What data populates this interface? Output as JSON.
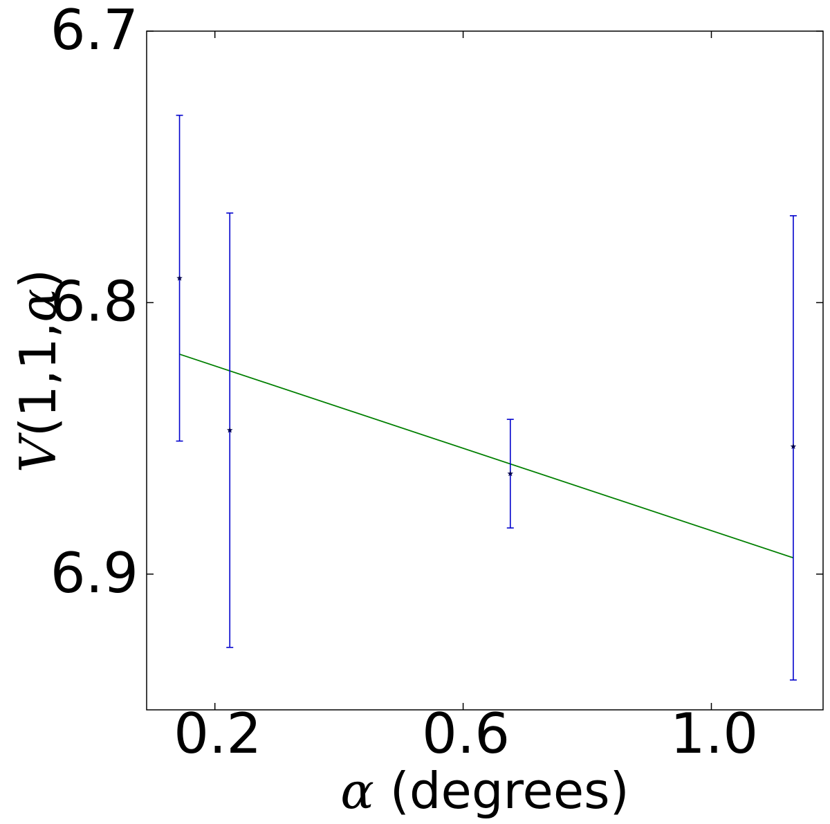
{
  "chart_data": {
    "type": "scatter",
    "title": "",
    "xlabel": "α (degrees)",
    "ylabel": "V(1,1,α)",
    "x_ticks": [
      0.2,
      0.6,
      1.0
    ],
    "x_tick_labels": [
      "0.2",
      "0.6",
      "1.0"
    ],
    "y_ticks": [
      6.7,
      6.8,
      6.9
    ],
    "y_tick_labels": [
      "6.7",
      "6.8",
      "6.9"
    ],
    "xlim": [
      0.09,
      1.18
    ],
    "ylim": [
      6.95,
      6.7
    ],
    "y_inverted": true,
    "grid": false,
    "points": [
      {
        "x": 0.143,
        "y": 6.791,
        "yerr_low": 6.731,
        "yerr_high": 6.851
      },
      {
        "x": 0.224,
        "y": 6.847,
        "yerr_low": 6.767,
        "yerr_high": 6.927
      },
      {
        "x": 0.676,
        "y": 6.863,
        "yerr_low": 6.843,
        "yerr_high": 6.883
      },
      {
        "x": 1.132,
        "y": 6.853,
        "yerr_low": 6.768,
        "yerr_high": 6.939
      }
    ],
    "fit_line": {
      "x": [
        0.143,
        1.132
      ],
      "y": [
        6.819,
        6.894
      ]
    },
    "colors": {
      "errorbar": "#0000cc",
      "marker": "#00004d",
      "fit": "#007f00"
    }
  }
}
